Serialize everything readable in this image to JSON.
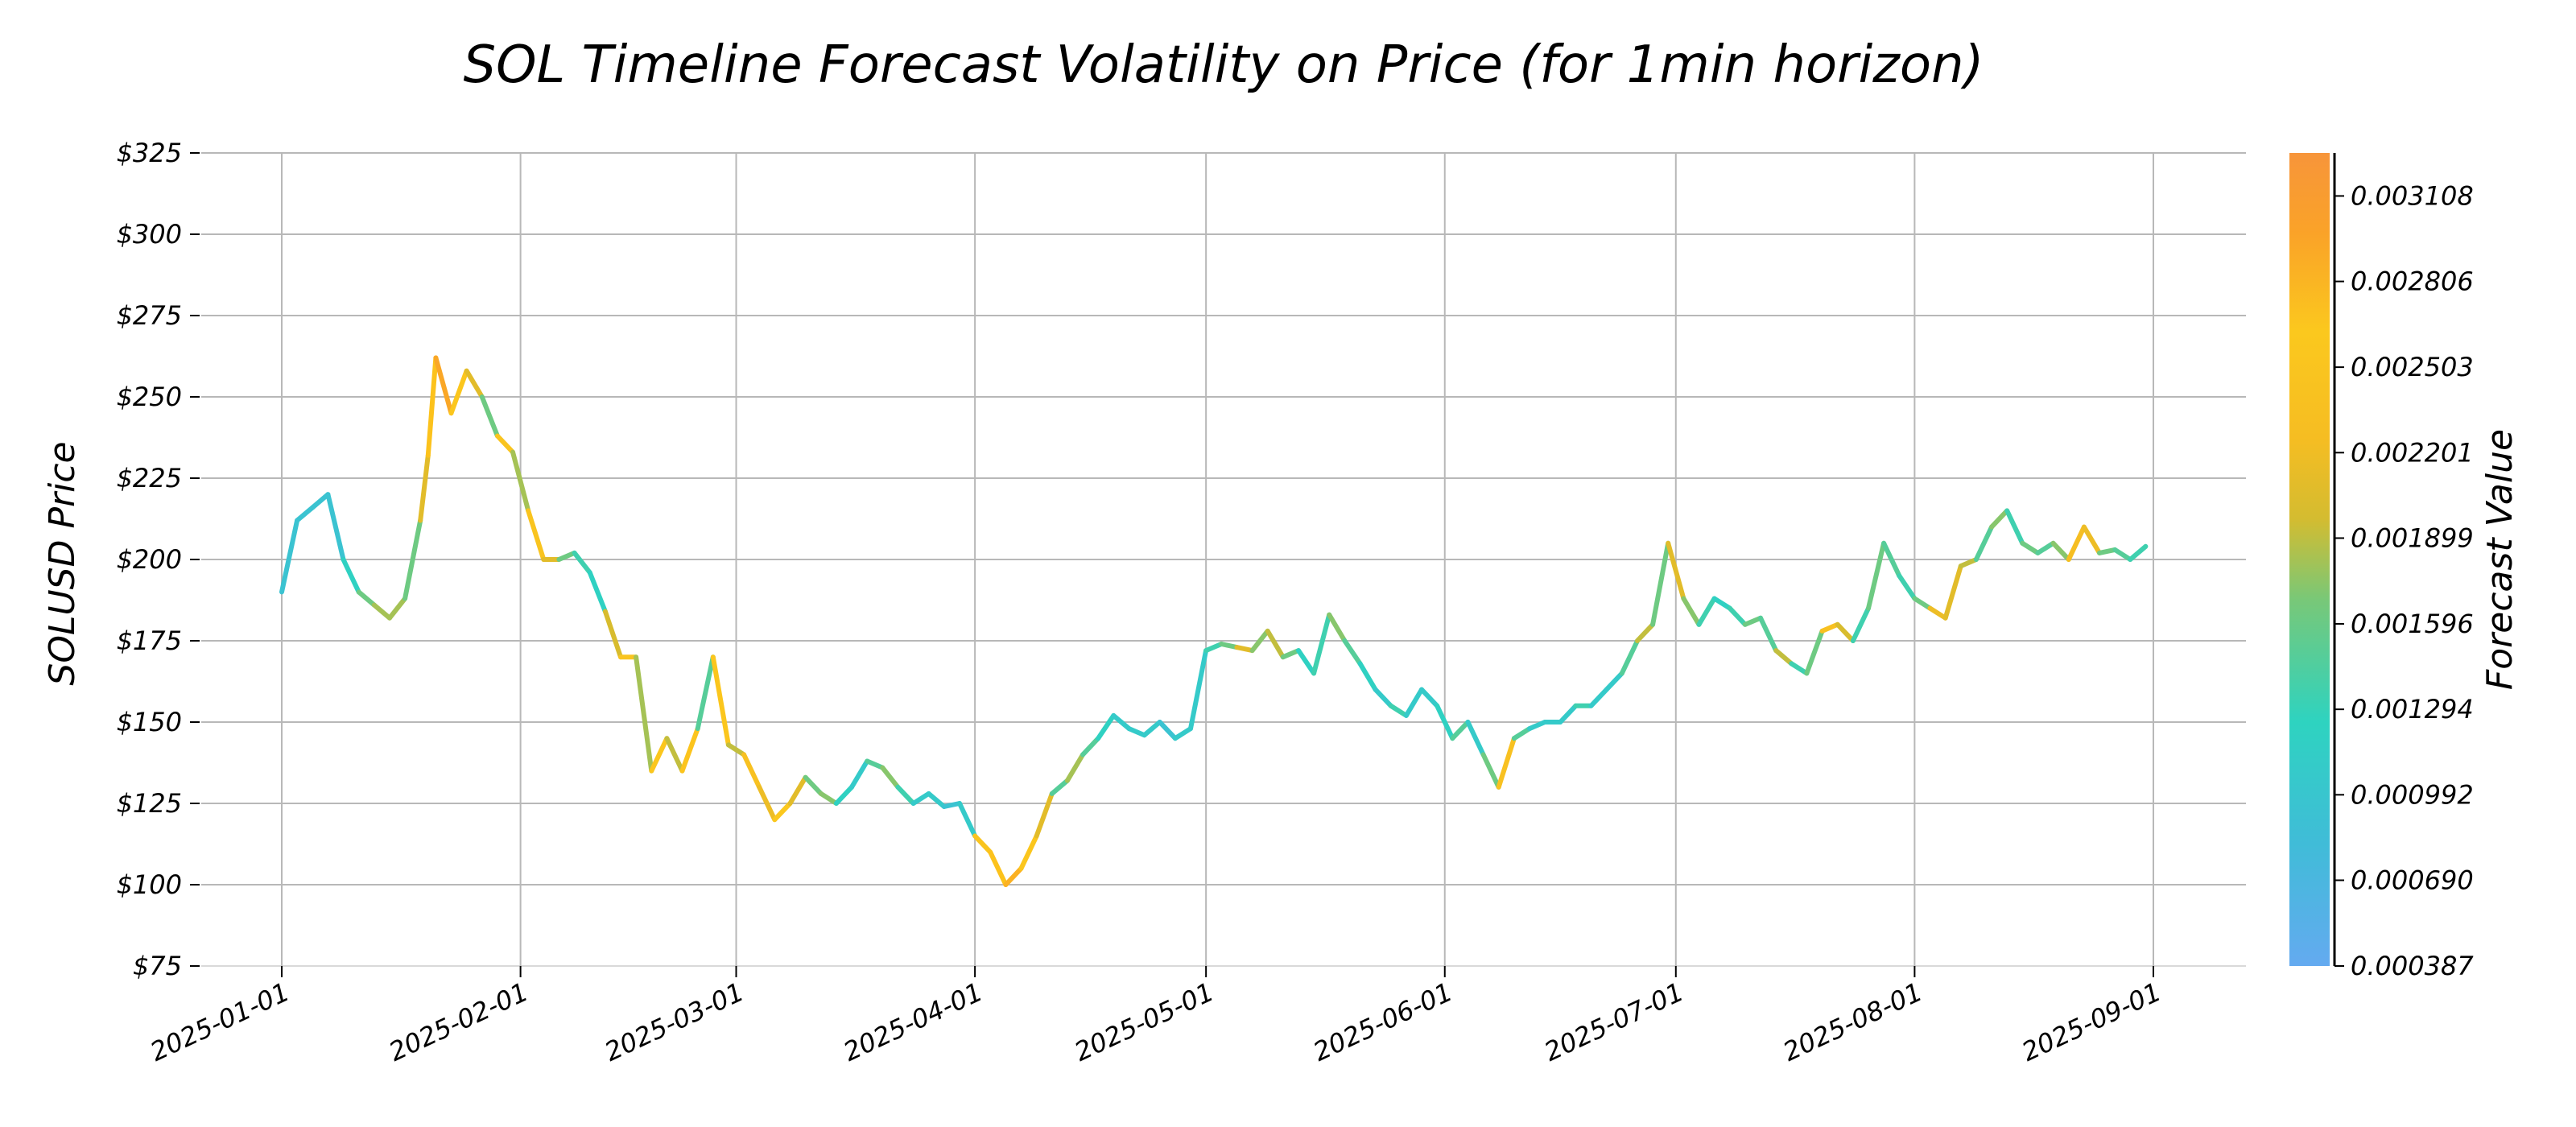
{
  "chart_data": {
    "type": "line",
    "title": "SOL Timeline Forecast Volatility on Price (for 1min horizon)",
    "xlabel": "",
    "ylabel": "SOLUSD Price",
    "ylim": [
      75,
      325
    ],
    "xlim": [
      "2025-01-01",
      "2025-09-01"
    ],
    "grid": true,
    "x_tick_labels": [
      "2025-01-01",
      "2025-02-01",
      "2025-03-01",
      "2025-04-01",
      "2025-05-01",
      "2025-06-01",
      "2025-07-01",
      "2025-08-01",
      "2025-09-01"
    ],
    "y_tick_values": [
      75,
      100,
      125,
      150,
      175,
      200,
      225,
      250,
      275,
      300,
      325
    ],
    "y_tick_labels": [
      "$75",
      "$100",
      "$125",
      "$150",
      "$175",
      "$200",
      "$225",
      "$250",
      "$275",
      "$300",
      "$325"
    ],
    "colorbar": {
      "label": "Forecast Value",
      "range": [
        0.000387,
        0.00326
      ],
      "tick_values": [
        0.000387,
        0.00069,
        0.000992,
        0.001294,
        0.001596,
        0.001899,
        0.002201,
        0.002503,
        0.002806,
        0.003108
      ],
      "tick_labels": [
        "0.000387",
        "0.000690",
        "0.000992",
        "0.001294",
        "0.001596",
        "0.001899",
        "0.002201",
        "0.002503",
        "0.002806",
        "0.003108"
      ],
      "colors": [
        "#64aaf0",
        "#40bcd8",
        "#2ed3c0",
        "#78c878",
        "#d4bc30",
        "#f6bd22",
        "#fbc81e",
        "#fcc21c",
        "#faa328",
        "#f7953a"
      ]
    },
    "series": [
      {
        "x": [
          "2025-01-01",
          "2025-01-03",
          "2025-01-05",
          "2025-01-07",
          "2025-01-09",
          "2025-01-11",
          "2025-01-13",
          "2025-01-15",
          "2025-01-17",
          "2025-01-19",
          "2025-01-20",
          "2025-01-21",
          "2025-01-23",
          "2025-01-25",
          "2025-01-27",
          "2025-01-29",
          "2025-01-31",
          "2025-02-02",
          "2025-02-04",
          "2025-02-06",
          "2025-02-08",
          "2025-02-10",
          "2025-02-12",
          "2025-02-14",
          "2025-02-16",
          "2025-02-18",
          "2025-02-20",
          "2025-02-22",
          "2025-02-24",
          "2025-02-26",
          "2025-02-28",
          "2025-03-02",
          "2025-03-04",
          "2025-03-06",
          "2025-03-08",
          "2025-03-10",
          "2025-03-12",
          "2025-03-14",
          "2025-03-16",
          "2025-03-18",
          "2025-03-20",
          "2025-03-22",
          "2025-03-24",
          "2025-03-26",
          "2025-03-28",
          "2025-03-30",
          "2025-04-01",
          "2025-04-03",
          "2025-04-05",
          "2025-04-07",
          "2025-04-09",
          "2025-04-11",
          "2025-04-13",
          "2025-04-15",
          "2025-04-17",
          "2025-04-19",
          "2025-04-21",
          "2025-04-23",
          "2025-04-25",
          "2025-04-27",
          "2025-04-29",
          "2025-05-01",
          "2025-05-03",
          "2025-05-05",
          "2025-05-07",
          "2025-05-09",
          "2025-05-11",
          "2025-05-13",
          "2025-05-15",
          "2025-05-17",
          "2025-05-19",
          "2025-05-21",
          "2025-05-23",
          "2025-05-25",
          "2025-05-27",
          "2025-05-29",
          "2025-05-31",
          "2025-06-02",
          "2025-06-04",
          "2025-06-06",
          "2025-06-08",
          "2025-06-10",
          "2025-06-12",
          "2025-06-14",
          "2025-06-16",
          "2025-06-18",
          "2025-06-20",
          "2025-06-22",
          "2025-06-24",
          "2025-06-26",
          "2025-06-28",
          "2025-06-30",
          "2025-07-02",
          "2025-07-04",
          "2025-07-06",
          "2025-07-08",
          "2025-07-10",
          "2025-07-12",
          "2025-07-14",
          "2025-07-16",
          "2025-07-18",
          "2025-07-20",
          "2025-07-22",
          "2025-07-24",
          "2025-07-26",
          "2025-07-28",
          "2025-07-30",
          "2025-08-01",
          "2025-08-03",
          "2025-08-05",
          "2025-08-07",
          "2025-08-09",
          "2025-08-11",
          "2025-08-13",
          "2025-08-15",
          "2025-08-17",
          "2025-08-19",
          "2025-08-21",
          "2025-08-23",
          "2025-08-25",
          "2025-08-27",
          "2025-08-29",
          "2025-08-31"
        ],
        "y": [
          190,
          212,
          216,
          220,
          200,
          190,
          186,
          182,
          188,
          212,
          232,
          262,
          245,
          258,
          250,
          238,
          233,
          215,
          200,
          200,
          202,
          196,
          184,
          170,
          170,
          135,
          145,
          135,
          148,
          170,
          143,
          140,
          130,
          120,
          125,
          133,
          128,
          125,
          130,
          138,
          136,
          130,
          125,
          128,
          124,
          125,
          115,
          110,
          100,
          105,
          115,
          128,
          132,
          140,
          145,
          152,
          148,
          146,
          150,
          145,
          148,
          172,
          174,
          173,
          172,
          178,
          170,
          172,
          165,
          183,
          175,
          168,
          160,
          155,
          152,
          160,
          155,
          145,
          150,
          140,
          130,
          145,
          148,
          150,
          150,
          155,
          155,
          160,
          165,
          175,
          180,
          205,
          188,
          180,
          188,
          185,
          180,
          182,
          172,
          168,
          165,
          178,
          180,
          175,
          185,
          205,
          195,
          188,
          185,
          182,
          198,
          200,
          210,
          215,
          205,
          202,
          205,
          200,
          210,
          202,
          203,
          200,
          204
        ],
        "vol": [
          0.0008,
          0.0008,
          0.0008,
          0.0008,
          0.001,
          0.0013,
          0.0015,
          0.0015,
          0.0013,
          0.0018,
          0.0026,
          0.0029,
          0.0024,
          0.0018,
          0.0013,
          0.0022,
          0.0015,
          0.0022,
          0.0018,
          0.0013,
          0.0011,
          0.001,
          0.0017,
          0.0022,
          0.0015,
          0.0024,
          0.0016,
          0.0025,
          0.0012,
          0.0024,
          0.0016,
          0.0021,
          0.0019,
          0.0023,
          0.0018,
          0.0013,
          0.0014,
          0.001,
          0.0009,
          0.0012,
          0.0014,
          0.0011,
          0.0009,
          0.0009,
          0.0008,
          0.0009,
          0.0022,
          0.0026,
          0.0028,
          0.0024,
          0.0018,
          0.0012,
          0.0015,
          0.0012,
          0.001,
          0.0009,
          0.0009,
          0.0009,
          0.0008,
          0.0009,
          0.0009,
          0.0011,
          0.0013,
          0.0018,
          0.0014,
          0.0016,
          0.0013,
          0.001,
          0.0011,
          0.0014,
          0.0012,
          0.001,
          0.0009,
          0.0011,
          0.0009,
          0.0009,
          0.001,
          0.0012,
          0.0009,
          0.0013,
          0.0021,
          0.0012,
          0.0009,
          0.0009,
          0.0009,
          0.0011,
          0.0009,
          0.0009,
          0.0012,
          0.0016,
          0.0013,
          0.0018,
          0.0014,
          0.0011,
          0.001,
          0.0011,
          0.0013,
          0.0012,
          0.0016,
          0.0011,
          0.0013,
          0.0021,
          0.0017,
          0.0011,
          0.0013,
          0.0012,
          0.0011,
          0.0013,
          0.0019,
          0.0018,
          0.0016,
          0.0012,
          0.0014,
          0.0011,
          0.0013,
          0.0012,
          0.0014,
          0.002,
          0.0019,
          0.0013,
          0.0012,
          0.0011,
          0.001
        ]
      }
    ]
  }
}
